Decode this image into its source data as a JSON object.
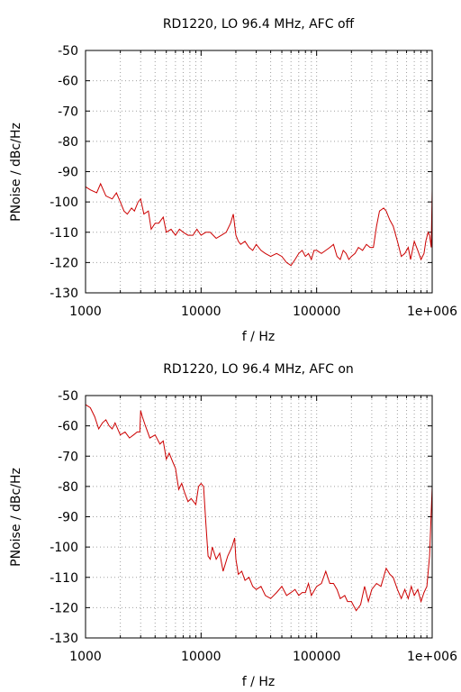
{
  "chart_data": [
    {
      "type": "line",
      "title": "RD1220, LO 96.4 MHz, AFC off",
      "xlabel": "f / Hz",
      "ylabel": "PNoise / dBc/Hz",
      "xscale": "log",
      "xlim": [
        1000,
        1000000
      ],
      "ylim": [
        -130,
        -50
      ],
      "xticks": [
        1000,
        10000,
        100000,
        1000000
      ],
      "xtick_labels": [
        "1000",
        "10000",
        "100000",
        "1e+006"
      ],
      "yticks": [
        -130,
        -120,
        -110,
        -100,
        -90,
        -80,
        -70,
        -60,
        -50
      ],
      "ytick_labels": [
        "-130",
        "-120",
        "-110",
        "-100",
        "-90",
        "-80",
        "-70",
        "-60",
        "-50"
      ],
      "grid": true,
      "series": [
        {
          "color": "#cc0000",
          "x": [
            1000,
            1100,
            1250,
            1350,
            1500,
            1700,
            1850,
            2000,
            2150,
            2300,
            2500,
            2650,
            2850,
            3000,
            3200,
            3500,
            3700,
            4000,
            4300,
            4700,
            5000,
            5500,
            6000,
            6500,
            7000,
            7700,
            8500,
            9200,
            10000,
            11000,
            12000,
            13500,
            15000,
            16500,
            18000,
            19000,
            20000,
            21000,
            22000,
            24000,
            26000,
            28000,
            30000,
            33000,
            36000,
            40000,
            45000,
            50000,
            55000,
            60000,
            65000,
            70000,
            75000,
            80000,
            85000,
            90000,
            95000,
            100000,
            110000,
            120000,
            130000,
            140000,
            150000,
            160000,
            170000,
            180000,
            190000,
            200000,
            215000,
            230000,
            250000,
            270000,
            290000,
            310000,
            330000,
            350000,
            380000,
            400000,
            430000,
            460000,
            500000,
            540000,
            580000,
            620000,
            650000,
            700000,
            750000,
            800000,
            850000,
            880000,
            920000,
            950000,
            980000,
            1000000
          ],
          "y": [
            -95,
            -96,
            -97,
            -94,
            -98,
            -99,
            -97,
            -100,
            -103,
            -104,
            -102,
            -103,
            -100,
            -99,
            -104,
            -103,
            -109,
            -107,
            -107,
            -105,
            -110,
            -109,
            -111,
            -109,
            -110,
            -111,
            -111,
            -109,
            -111,
            -110,
            -110,
            -112,
            -111,
            -110,
            -107,
            -104,
            -111,
            -113,
            -114,
            -113,
            -115,
            -116,
            -114,
            -116,
            -117,
            -118,
            -117,
            -118,
            -120,
            -121,
            -119,
            -117,
            -116,
            -118,
            -117,
            -119,
            -116,
            -116,
            -117,
            -116,
            -115,
            -114,
            -118,
            -119,
            -116,
            -117,
            -119,
            -118,
            -117,
            -115,
            -116,
            -114,
            -115,
            -115,
            -108,
            -103,
            -102,
            -103,
            -106,
            -108,
            -113,
            -118,
            -117,
            -115,
            -119,
            -113,
            -116,
            -119,
            -117,
            -113,
            -110,
            -111,
            -115,
            -96
          ]
        }
      ]
    },
    {
      "type": "line",
      "title": "RD1220, LO 96.4 MHz, AFC on",
      "xlabel": "f / Hz",
      "ylabel": "PNoise / dBc/Hz",
      "xscale": "log",
      "xlim": [
        1000,
        1000000
      ],
      "ylim": [
        -130,
        -50
      ],
      "xticks": [
        1000,
        10000,
        100000,
        1000000
      ],
      "xtick_labels": [
        "1000",
        "10000",
        "100000",
        "1e+006"
      ],
      "yticks": [
        -130,
        -120,
        -110,
        -100,
        -90,
        -80,
        -70,
        -60,
        -50
      ],
      "ytick_labels": [
        "-130",
        "-120",
        "-110",
        "-100",
        "-90",
        "-80",
        "-70",
        "-60",
        "-50"
      ],
      "grid": true,
      "series": [
        {
          "color": "#cc0000",
          "x": [
            1000,
            1100,
            1200,
            1300,
            1400,
            1500,
            1600,
            1700,
            1800,
            2000,
            2200,
            2400,
            2600,
            2800,
            2950,
            3000,
            3100,
            3300,
            3600,
            4000,
            4400,
            4700,
            5000,
            5300,
            5700,
            6000,
            6400,
            6800,
            7200,
            7700,
            8200,
            9000,
            9500,
            10000,
            10500,
            11000,
            11500,
            12000,
            12500,
            13500,
            14500,
            15500,
            17000,
            18500,
            19500,
            20000,
            21000,
            22500,
            24000,
            26000,
            28000,
            30000,
            33000,
            36000,
            40000,
            45000,
            50000,
            55000,
            60000,
            65000,
            70000,
            75000,
            80000,
            85000,
            90000,
            100000,
            110000,
            120000,
            130000,
            140000,
            150000,
            160000,
            175000,
            185000,
            200000,
            220000,
            240000,
            260000,
            280000,
            300000,
            330000,
            360000,
            400000,
            430000,
            460000,
            500000,
            540000,
            580000,
            620000,
            660000,
            700000,
            750000,
            800000,
            850000,
            900000,
            950000,
            1000000
          ],
          "y": [
            -53,
            -54,
            -57,
            -61,
            -59,
            -58,
            -60,
            -61,
            -59,
            -63,
            -62,
            -64,
            -63,
            -62,
            -62,
            -55,
            -57,
            -60,
            -64,
            -63,
            -66,
            -65,
            -71,
            -69,
            -72,
            -74,
            -81,
            -79,
            -82,
            -85,
            -84,
            -86,
            -80,
            -79,
            -80,
            -92,
            -103,
            -104,
            -100,
            -104,
            -102,
            -108,
            -103,
            -100,
            -97,
            -104,
            -109,
            -108,
            -111,
            -110,
            -113,
            -114,
            -113,
            -116,
            -117,
            -115,
            -113,
            -116,
            -115,
            -114,
            -116,
            -115,
            -115,
            -112,
            -116,
            -113,
            -112,
            -108,
            -112,
            -112,
            -114,
            -117,
            -116,
            -118,
            -118,
            -121,
            -119,
            -113,
            -118,
            -114,
            -112,
            -113,
            -107,
            -109,
            -110,
            -114,
            -117,
            -114,
            -117,
            -113,
            -116,
            -114,
            -118,
            -115,
            -113,
            -103,
            -80
          ]
        }
      ]
    }
  ]
}
